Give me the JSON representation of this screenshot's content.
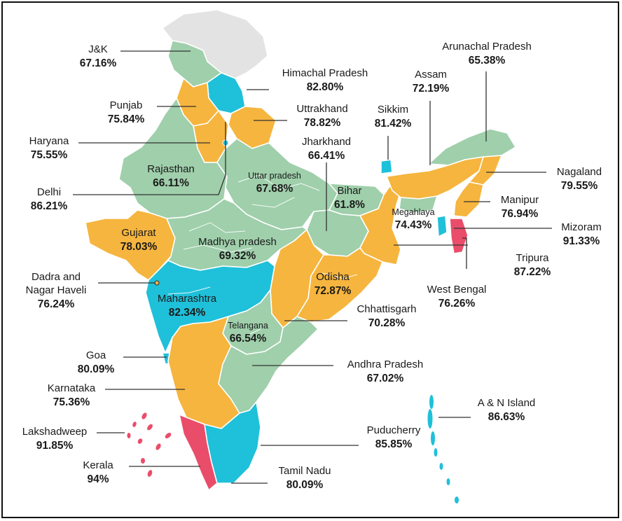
{
  "colors": {
    "green": "#9fcfab",
    "orange": "#f6b53e",
    "blue": "#1fc0d9",
    "red": "#e94d6a",
    "grey": "#e3e3e3",
    "border": "#ffffff",
    "line": "#333333"
  },
  "states": {
    "jk": {
      "name": "J&K",
      "pct": "67.16%"
    },
    "himachal": {
      "name": "Himachal Pradesh",
      "pct": "82.80%"
    },
    "punjab": {
      "name": "Punjab",
      "pct": "75.84%"
    },
    "uttrakhand": {
      "name": "Uttrakhand",
      "pct": "78.82%"
    },
    "haryana": {
      "name": "Haryana",
      "pct": "75.55%"
    },
    "rajasthan": {
      "name": "Rajasthan",
      "pct": "66.11%"
    },
    "delhi": {
      "name": "Delhi",
      "pct": "86.21%"
    },
    "up": {
      "name": "Uttar pradesh",
      "pct": "67.68%"
    },
    "jharkhand": {
      "name": "Jharkhand",
      "pct": "66.41%"
    },
    "sikkim": {
      "name": "Sikkim",
      "pct": "81.42%"
    },
    "assam": {
      "name": "Assam",
      "pct": "72.19%"
    },
    "arunachal": {
      "name": "Arunachal Pradesh",
      "pct": "65.38%"
    },
    "nagaland": {
      "name": "Nagaland",
      "pct": "79.55%"
    },
    "manipur": {
      "name": "Manipur",
      "pct": "76.94%"
    },
    "bihar": {
      "name": "Bihar",
      "pct": "61.8%"
    },
    "meghalaya": {
      "name": "Megahlaya",
      "pct": "74.43%"
    },
    "mizoram": {
      "name": "Mizoram",
      "pct": "91.33%"
    },
    "tripura": {
      "name": "Tripura",
      "pct": "87.22%"
    },
    "gujarat": {
      "name": "Gujarat",
      "pct": "78.03%"
    },
    "mp": {
      "name": "Madhya pradesh",
      "pct": "69.32%"
    },
    "dnh": {
      "name": "Dadra and Nagar Haveli",
      "name1": "Dadra and",
      "name2": "Nagar Haveli",
      "pct": "76.24%"
    },
    "odisha": {
      "name": "Odisha",
      "pct": "72.87%"
    },
    "westbengal": {
      "name": "West Bengal",
      "pct": "76.26%"
    },
    "maharashtra": {
      "name": "Maharashtra",
      "pct": "82.34%"
    },
    "chhattisgarh": {
      "name": "Chhattisgarh",
      "pct": "70.28%"
    },
    "telangana": {
      "name": "Telangana",
      "pct": "66.54%"
    },
    "goa": {
      "name": "Goa",
      "pct": "80.09%"
    },
    "andhra": {
      "name": "Andhra Pradesh",
      "pct": "67.02%"
    },
    "karnataka": {
      "name": "Karnataka",
      "pct": "75.36%"
    },
    "an": {
      "name": "A & N Island",
      "pct": "86.63%"
    },
    "puducherry": {
      "name": "Puducherry",
      "pct": "85.85%"
    },
    "lakshadweep": {
      "name": "Lakshadweep",
      "pct": "91.85%"
    },
    "kerala": {
      "name": "Kerala",
      "pct": "94%"
    },
    "tamilnadu": {
      "name": "Tamil Nadu",
      "pct": "80.09%"
    }
  }
}
